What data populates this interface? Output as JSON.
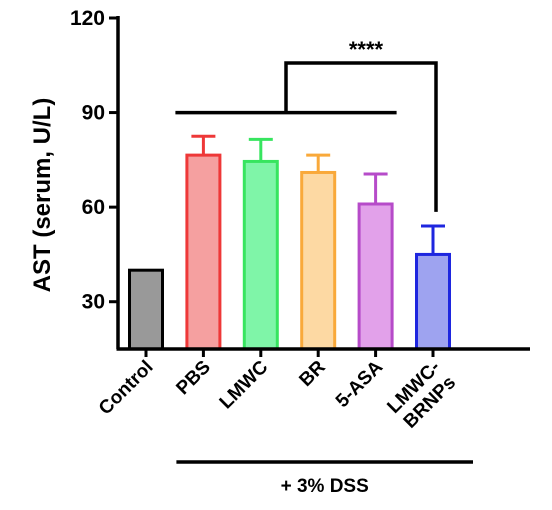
{
  "chart_data": {
    "type": "bar",
    "title": "",
    "xlabel": "",
    "ylabel": "AST (serum, U/L)",
    "ylim": [
      15,
      120
    ],
    "yticks": [
      30,
      60,
      90,
      120
    ],
    "grid": false,
    "categories": [
      "Control",
      "PBS",
      "LMWC",
      "BR",
      "5-ASA",
      "LMWC-BRNPs"
    ],
    "category_label_lines": [
      [
        "Control"
      ],
      [
        "PBS"
      ],
      [
        "LMWC"
      ],
      [
        "BR"
      ],
      [
        "5-ASA"
      ],
      [
        "LMWC-",
        "BRNPs"
      ]
    ],
    "values": [
      40,
      76.5,
      74.5,
      71,
      61,
      45
    ],
    "errors": [
      0,
      6,
      7,
      5.5,
      9.5,
      9
    ],
    "colors": {
      "fill": [
        "#999999",
        "#f5a0a0",
        "#7ff5a8",
        "#fdd9a3",
        "#e2a1ea",
        "#9ea3f0"
      ],
      "stroke": [
        "#000000",
        "#ee3838",
        "#37e55f",
        "#f9a93a",
        "#b64bc9",
        "#1e26df"
      ]
    },
    "group_annotation": {
      "label": "+ 3% DSS",
      "categories": [
        "PBS",
        "LMWC",
        "BR",
        "5-ASA",
        "LMWC-BRNPs"
      ]
    },
    "significance": {
      "label": "****",
      "from_categories": [
        "PBS",
        "LMWC",
        "BR",
        "5-ASA"
      ],
      "to_category": "LMWC-BRNPs"
    }
  }
}
